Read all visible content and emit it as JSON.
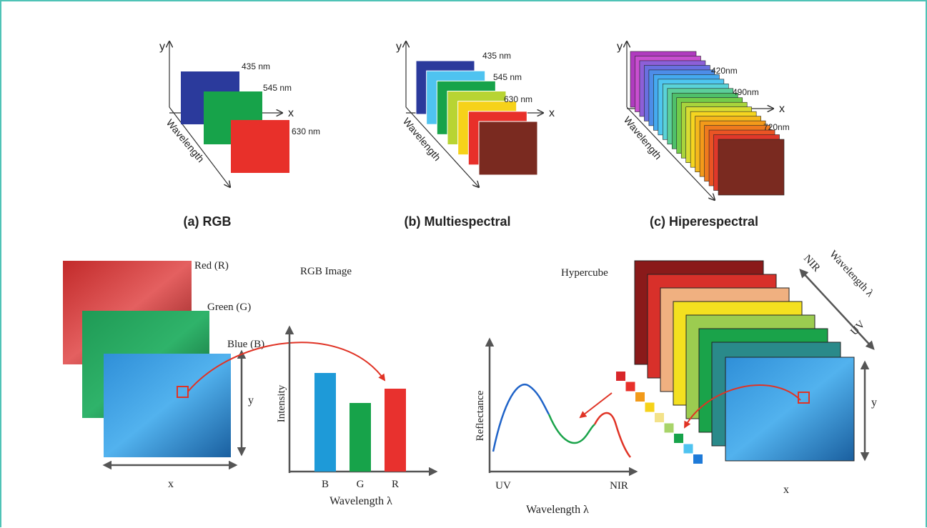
{
  "panels": [
    {
      "y": "y",
      "x": "x",
      "axis": "Wavelength",
      "bands": [
        "435 nm",
        "545 nm",
        "630 nm"
      ],
      "caption": "(a) RGB"
    },
    {
      "y": "y",
      "x": "x",
      "axis": "Wavelength",
      "bands": [
        "435 nm",
        "545 nm",
        "630 nm"
      ],
      "caption": "(b) Multiespectral"
    },
    {
      "y": "y",
      "x": "x",
      "axis": "Wavelength",
      "bands": [
        "420nm",
        "490nm",
        "720nm"
      ],
      "caption": "(c) Hiperespectral"
    }
  ],
  "rgb": {
    "title": "RGB Image",
    "layers": [
      "Red (R)",
      "Green (G)",
      "Blue (B)"
    ],
    "y": "y",
    "x": "x",
    "y_label": "Intensity",
    "bars": [
      "B",
      "G",
      "R"
    ],
    "x_label": "Wavelength λ"
  },
  "hypercube": {
    "title": "Hypercube",
    "y_label": "Reflectance",
    "x_start": "UV",
    "x_end": "NIR",
    "x_label": "Wavelength λ",
    "axis_start": "NIR",
    "axis_label": "Wavelength λ",
    "axis_end": "UV",
    "y": "y",
    "x": "x"
  }
}
